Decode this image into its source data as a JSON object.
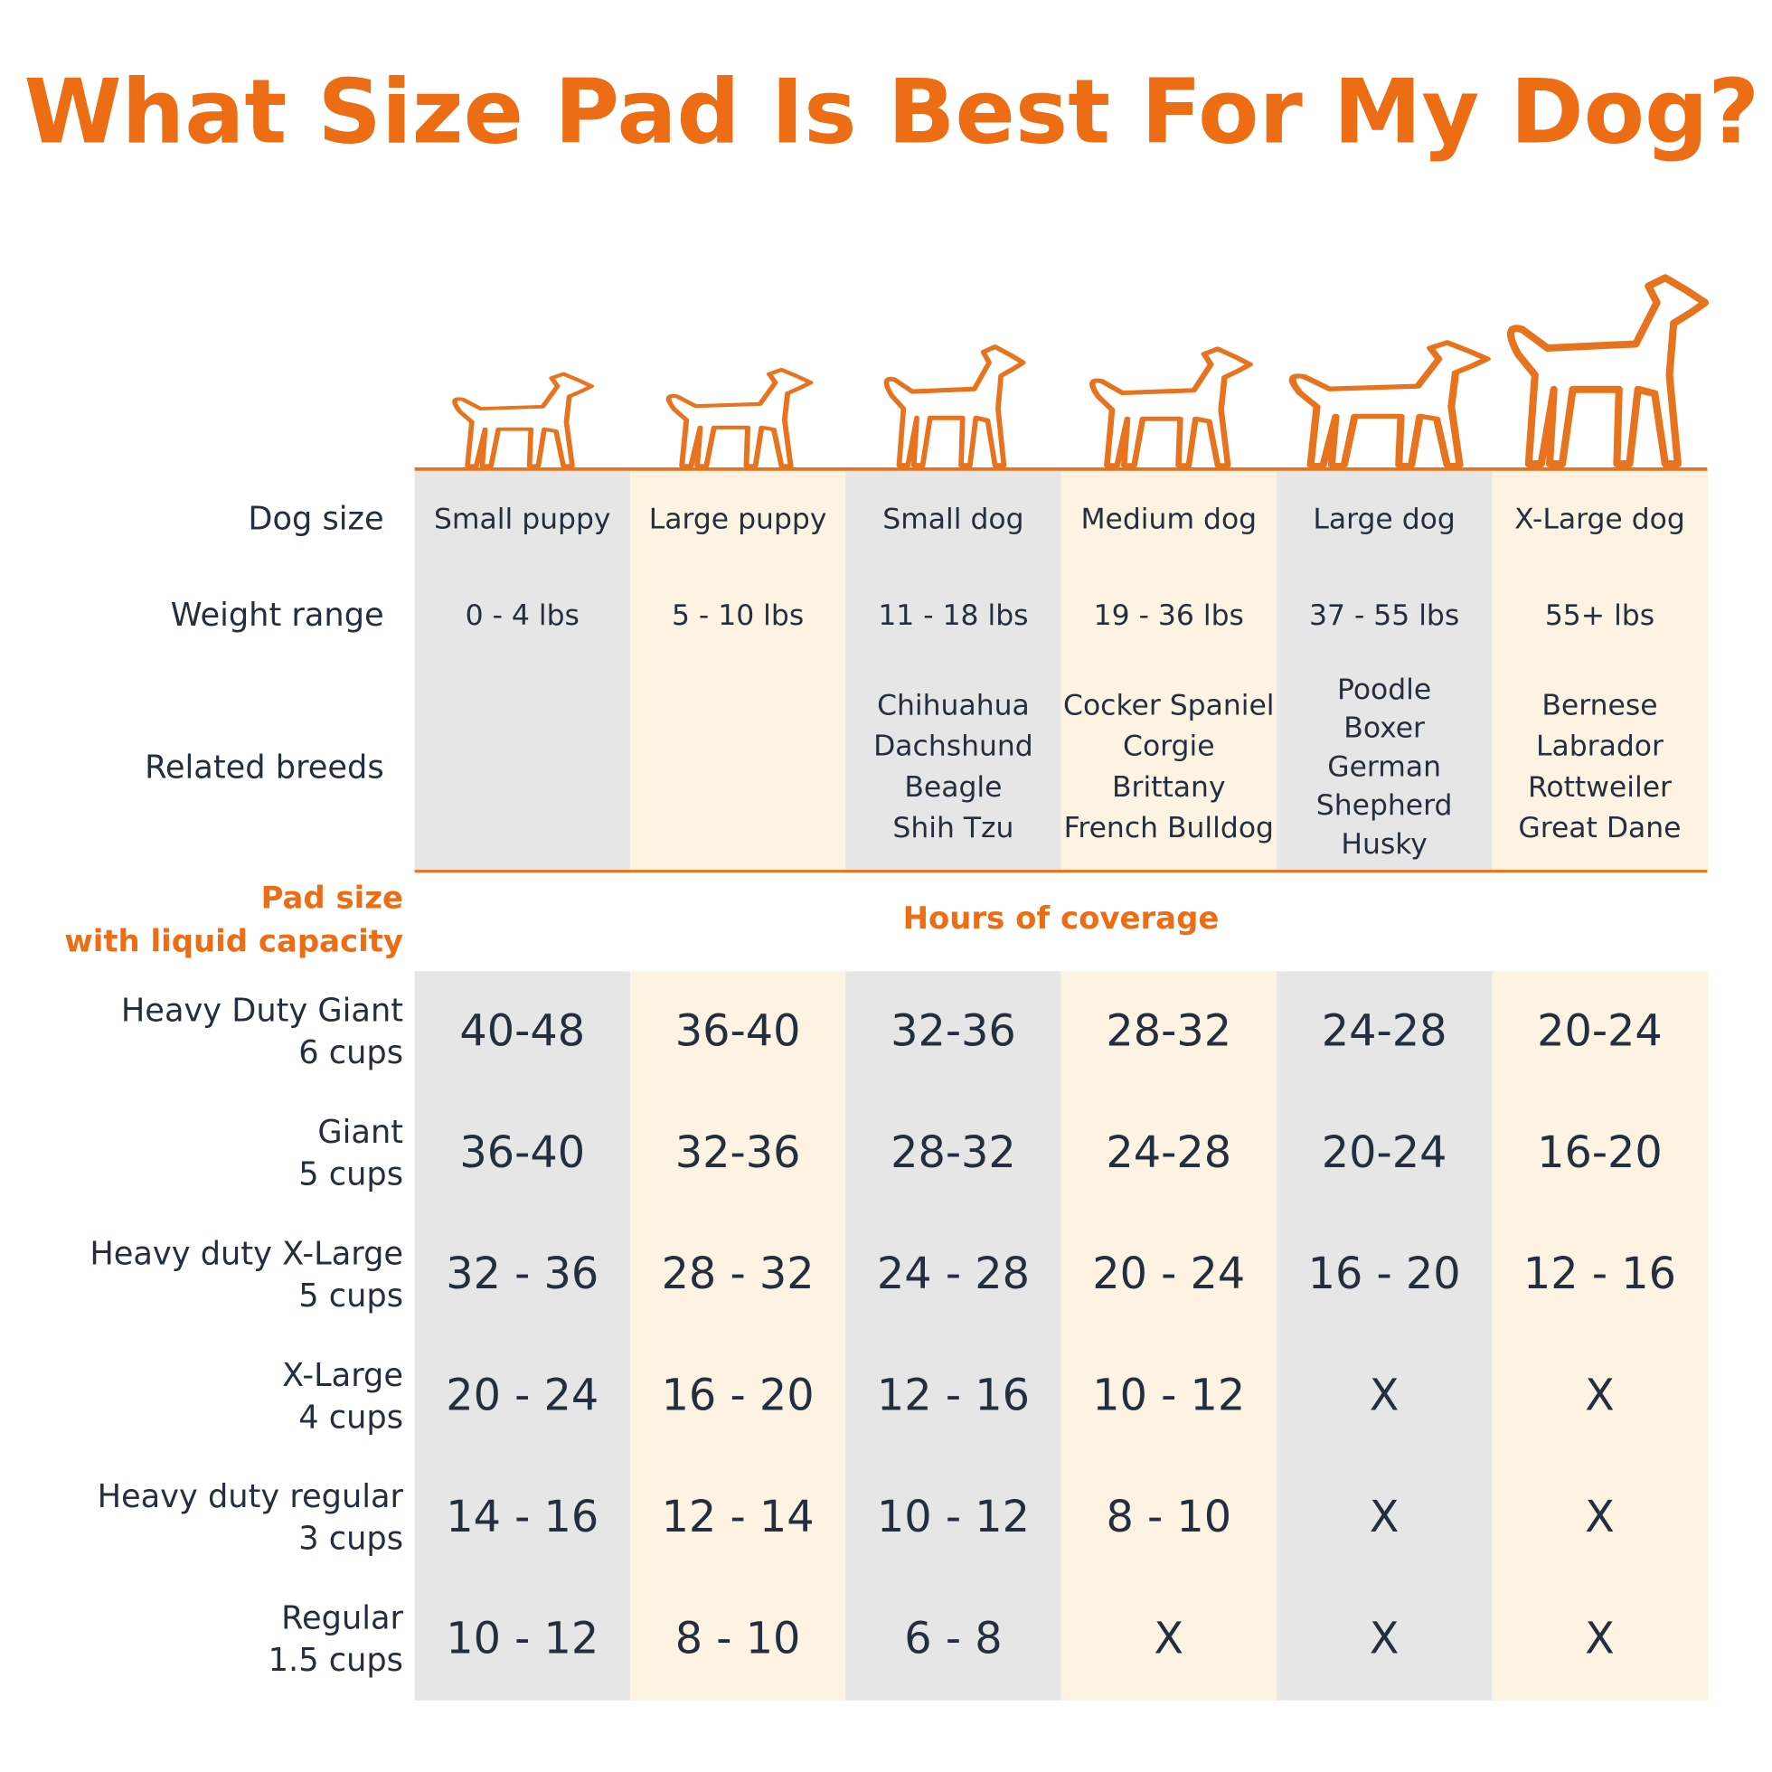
{
  "title": "What Size Pad Is Best For My Dog?",
  "row_labels": {
    "dog_size": "Dog size",
    "weight_range": "Weight range",
    "related_breeds": "Related breeds"
  },
  "pad_header": {
    "lines": [
      "Pad size",
      "with liquid capacity"
    ],
    "coverage": "Hours of coverage"
  },
  "columns": [
    {
      "size": "Small puppy",
      "weight": "0 - 4 lbs",
      "breeds": []
    },
    {
      "size": "Large puppy",
      "weight": "5 - 10 lbs",
      "breeds": []
    },
    {
      "size": "Small dog",
      "weight": "11 - 18 lbs",
      "breeds": [
        "Chihuahua",
        "Dachshund",
        "Beagle",
        "Shih Tzu"
      ]
    },
    {
      "size": "Medium dog",
      "weight": "19 - 36 lbs",
      "breeds": [
        "Cocker Spaniel",
        "Corgie",
        "Brittany",
        "French Bulldog"
      ]
    },
    {
      "size": "Large dog",
      "weight": "37 - 55 lbs",
      "breeds": [
        "Poodle",
        "Boxer",
        "German",
        "Shepherd",
        "Husky"
      ]
    },
    {
      "size": "X-Large dog",
      "weight": "55+ lbs",
      "breeds": [
        "Bernese",
        "Labrador",
        "Rottweiler",
        "Great Dane"
      ]
    }
  ],
  "pads": [
    {
      "name": "Heavy Duty Giant",
      "capacity": "6 cups",
      "hours": [
        "40-48",
        "36-40",
        "32-36",
        "28-32",
        "24-28",
        "20-24"
      ]
    },
    {
      "name": "Giant",
      "capacity": "5 cups",
      "hours": [
        "36-40",
        "32-36",
        "28-32",
        "24-28",
        "20-24",
        "16-20"
      ]
    },
    {
      "name": "Heavy duty X-Large",
      "capacity": "5 cups",
      "hours": [
        "32 - 36",
        "28 - 32",
        "24 - 28",
        "20 - 24",
        "16 - 20",
        "12 - 16"
      ]
    },
    {
      "name": "X-Large",
      "capacity": "4 cups",
      "hours": [
        "20 - 24",
        "16 - 20",
        "12 - 16",
        "10 - 12",
        "X",
        "X"
      ]
    },
    {
      "name": "Heavy duty regular",
      "capacity": "3 cups",
      "hours": [
        "14 - 16",
        "12 - 14",
        "10 - 12",
        "8 - 10",
        "X",
        "X"
      ]
    },
    {
      "name": "Regular",
      "capacity": "1.5 cups",
      "hours": [
        "10 - 12",
        "8 - 10",
        "6 - 8",
        "X",
        "X",
        "X"
      ]
    }
  ]
}
